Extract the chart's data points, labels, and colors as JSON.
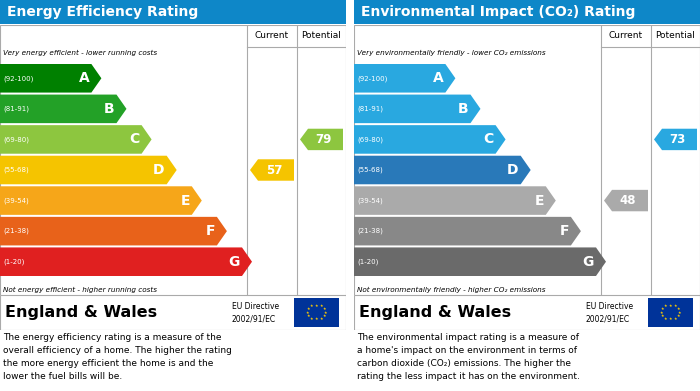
{
  "left_title": "Energy Efficiency Rating",
  "right_title": "Environmental Impact (CO₂) Rating",
  "title_bg": "#0e87c8",
  "title_color": "#ffffff",
  "left_header_top": "Very energy efficient - lower running costs",
  "left_header_bottom": "Not energy efficient - higher running costs",
  "right_header_top": "Very environmentally friendly - lower CO₂ emissions",
  "right_header_bottom": "Not environmentally friendly - higher CO₂ emissions",
  "bands_energy": [
    {
      "label": "A",
      "range": "(92-100)",
      "color": "#008000"
    },
    {
      "label": "B",
      "range": "(81-91)",
      "color": "#23a127"
    },
    {
      "label": "C",
      "range": "(69-80)",
      "color": "#8dc63f"
    },
    {
      "label": "D",
      "range": "(55-68)",
      "color": "#f5c400"
    },
    {
      "label": "E",
      "range": "(39-54)",
      "color": "#f6a619"
    },
    {
      "label": "F",
      "range": "(21-38)",
      "color": "#e8621a"
    },
    {
      "label": "G",
      "range": "(1-20)",
      "color": "#e02020"
    }
  ],
  "bands_env": [
    {
      "label": "A",
      "range": "(92-100)",
      "color": "#29a8e0"
    },
    {
      "label": "B",
      "range": "(81-91)",
      "color": "#29a8e0"
    },
    {
      "label": "C",
      "range": "(69-80)",
      "color": "#29a8e0"
    },
    {
      "label": "D",
      "range": "(55-68)",
      "color": "#2979b9"
    },
    {
      "label": "E",
      "range": "(39-54)",
      "color": "#aaaaaa"
    },
    {
      "label": "F",
      "range": "(21-38)",
      "color": "#888888"
    },
    {
      "label": "G",
      "range": "(1-20)",
      "color": "#6a6a6a"
    }
  ],
  "energy_current_val": 57,
  "energy_current_color": "#f5c400",
  "energy_current_band_idx": 3,
  "energy_potential_val": 79,
  "energy_potential_color": "#8dc63f",
  "energy_potential_band_idx": 2,
  "env_current_val": 48,
  "env_current_color": "#aaaaaa",
  "env_current_band_idx": 4,
  "env_potential_val": 73,
  "env_potential_color": "#29a8e0",
  "env_potential_band_idx": 2,
  "bottom_text_energy": "The energy efficiency rating is a measure of the\noverall efficiency of a home. The higher the rating\nthe more energy efficient the home is and the\nlower the fuel bills will be.",
  "bottom_text_env": "The environmental impact rating is a measure of\na home's impact on the environment in terms of\ncarbon dioxide (CO₂) emissions. The higher the\nrating the less impact it has on the environment.",
  "eu_flag_color": "#003399",
  "eu_star_color": "#ffcc00"
}
